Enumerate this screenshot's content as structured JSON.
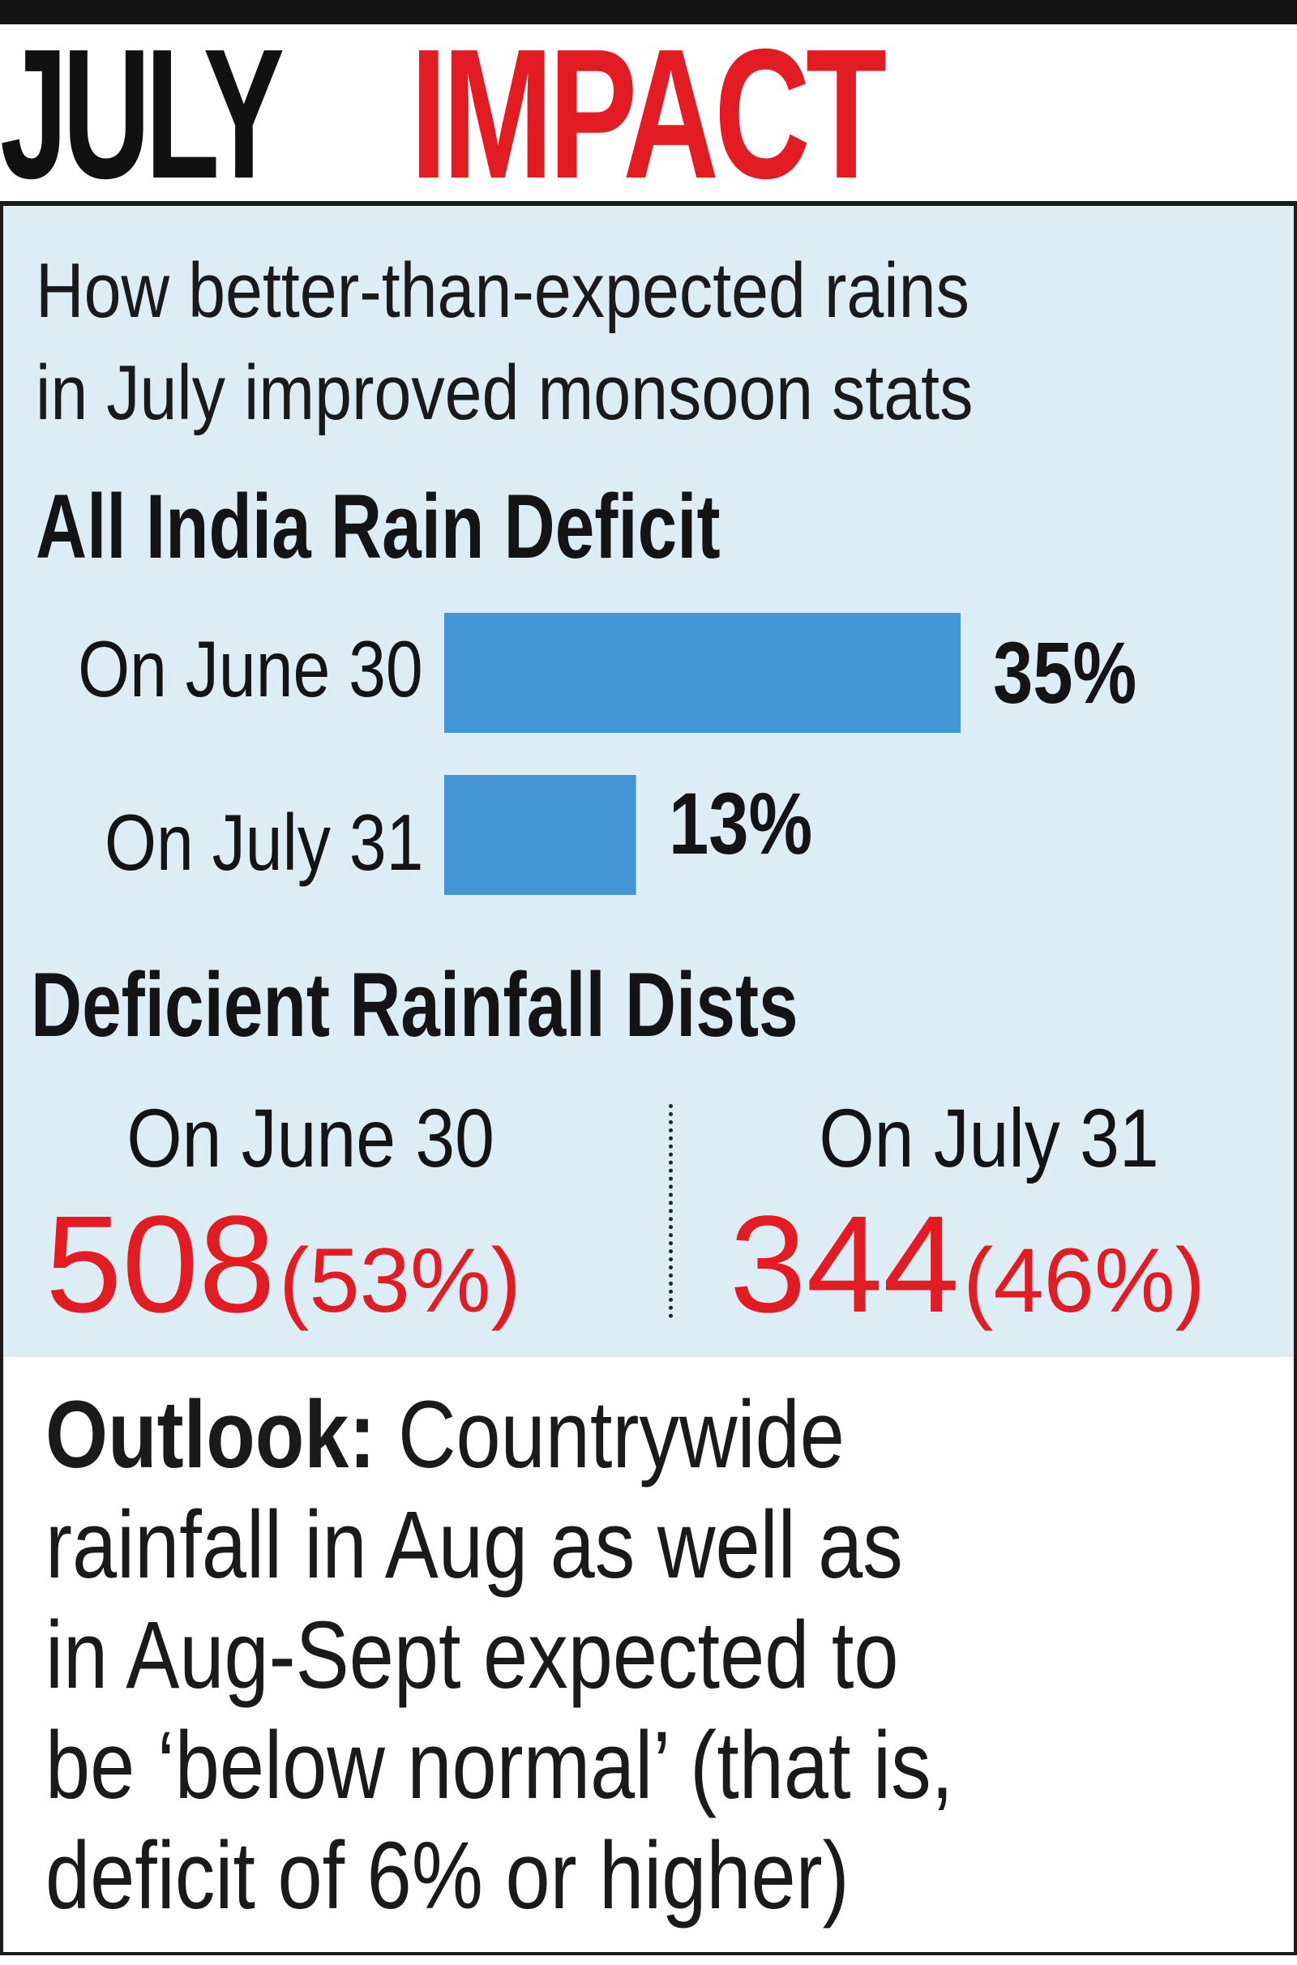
{
  "headline": {
    "word1": "JULY",
    "word2": "IMPACT"
  },
  "subtitle_lines": [
    "How better-than-expected rains",
    "in July improved monsoon stats"
  ],
  "colors": {
    "accent_red": "#e31b23",
    "bar_blue": "#4296d6",
    "panel_bg": "#dcedf6"
  },
  "chart_data": [
    {
      "type": "bar",
      "orientation": "horizontal",
      "title": "All India Rain Deficit",
      "categories": [
        "On June 30",
        "On July 31"
      ],
      "values": [
        35,
        13
      ],
      "value_labels": [
        "35%",
        "13%"
      ],
      "unit": "%"
    },
    {
      "type": "table",
      "title": "Deficient Rainfall Dists",
      "columns": [
        {
          "label": "On June 30",
          "count": "508",
          "share": "(53%)"
        },
        {
          "label": "On July 31",
          "count": "344",
          "share": "(46%)"
        }
      ]
    }
  ],
  "outlook": {
    "label": "Outlook:",
    "first_line": "Countrywide",
    "lines": [
      "rainfall in Aug as well as",
      "in Aug-Sept expected to",
      "be ‘below normal’ (that is,",
      "deficit of 6% or higher)"
    ]
  }
}
